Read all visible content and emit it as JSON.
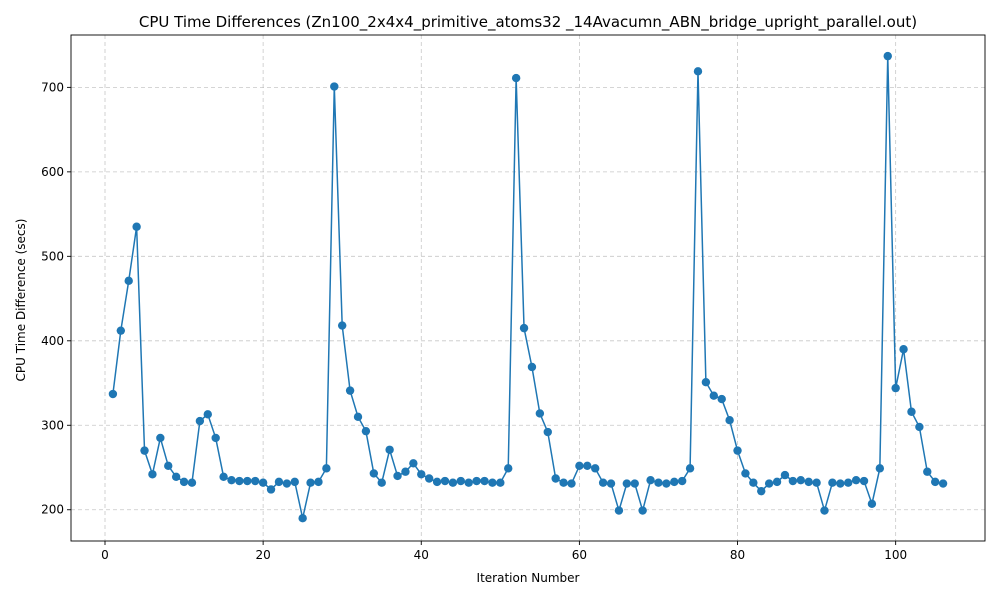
{
  "chart_data": {
    "type": "line",
    "title": "CPU Time Differences (Zn100_2x4x4_primitive_atoms32 _14Avacumn_ABN_bridge_upright_parallel.out)",
    "xlabel": "Iteration Number",
    "ylabel": "CPU Time Difference (secs)",
    "xlim": [
      -4.3,
      111.3
    ],
    "ylim": [
      163,
      762
    ],
    "xticks": [
      0,
      20,
      40,
      60,
      80,
      100
    ],
    "yticks": [
      200,
      300,
      400,
      500,
      600,
      700
    ],
    "grid": true,
    "marker": "circle",
    "color": "#1f77b4",
    "series": [
      {
        "x": [
          1,
          2,
          3,
          4,
          5,
          6,
          7,
          8,
          9,
          10,
          11,
          12,
          13,
          14,
          15,
          16,
          17,
          18,
          19,
          20,
          21,
          22,
          23,
          24,
          25,
          26,
          27,
          28,
          29,
          30,
          31,
          32,
          33,
          34,
          35,
          36,
          37,
          38,
          39,
          40,
          41,
          42,
          43,
          44,
          45,
          46,
          47,
          48,
          49,
          50,
          51,
          52,
          53,
          54,
          55,
          56,
          57,
          58,
          59,
          60,
          61,
          62,
          63,
          64,
          65,
          66,
          67,
          68,
          69,
          70,
          71,
          72,
          73,
          74,
          75,
          76,
          77,
          78,
          79,
          80,
          81,
          82,
          83,
          84,
          85,
          86,
          87,
          88,
          89,
          90,
          91,
          92,
          93,
          94,
          95,
          96,
          97,
          98,
          99,
          100,
          101,
          102,
          103,
          104,
          105,
          106
        ],
        "values": [
          337,
          412,
          471,
          535,
          270,
          242,
          285,
          252,
          239,
          233,
          232,
          305,
          313,
          285,
          239,
          235,
          234,
          234,
          234,
          232,
          224,
          233,
          231,
          233,
          190,
          232,
          233,
          249,
          701,
          418,
          341,
          310,
          293,
          243,
          232,
          271,
          240,
          245,
          255,
          242,
          237,
          233,
          234,
          232,
          234,
          232,
          234,
          234,
          232,
          232,
          249,
          711,
          415,
          369,
          314,
          292,
          237,
          232,
          231,
          252,
          252,
          249,
          232,
          231,
          199,
          231,
          231,
          199,
          235,
          232,
          231,
          233,
          234,
          249,
          719,
          351,
          335,
          331,
          306,
          270,
          243,
          232,
          222,
          231,
          233,
          241,
          234,
          235,
          233,
          232,
          199,
          232,
          231,
          232,
          235,
          234,
          207,
          249,
          737,
          344,
          390,
          316,
          298,
          245,
          233,
          231
        ]
      }
    ]
  }
}
